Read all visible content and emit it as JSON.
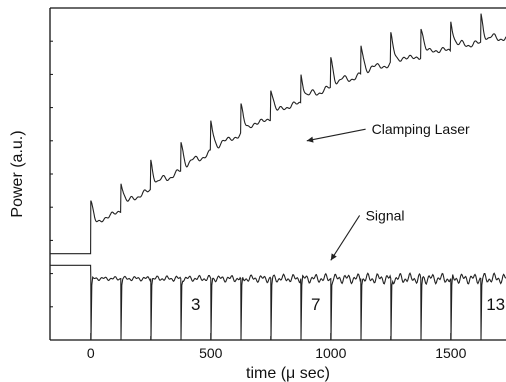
{
  "chart_data": {
    "type": "line",
    "title": "",
    "xlabel": "time (μ sec)",
    "ylabel": "Power (a.u.)",
    "xlim": [
      -170,
      1730
    ],
    "ylim": [
      0,
      100
    ],
    "xticks": [
      0,
      500,
      1000,
      1500
    ],
    "xtick_labels": [
      "0",
      "500",
      "1000",
      "1500"
    ],
    "y_tick_labels": false,
    "grid": false,
    "legend": "none",
    "colors": {
      "trace": "#222222",
      "axes": "#111111"
    },
    "series": [
      {
        "name": "Clamping Laser",
        "baseline_before_pulse": 26,
        "pump_start_x": 0,
        "envelope_x": [
          0,
          200,
          400,
          600,
          800,
          1000,
          1200,
          1400,
          1600,
          1730
        ],
        "envelope_y": [
          35,
          45,
          54,
          63,
          71,
          78,
          84,
          88,
          91,
          93
        ],
        "relaxation_period": 125,
        "spike_height": 9,
        "spike_decay": 26
      },
      {
        "name": "Signal",
        "baseline_before_pulse": 22.5,
        "baseline_after_pulse": 18.5,
        "pulse_period": 125,
        "pulse_depth": 18.5,
        "pulse_count": 14
      }
    ],
    "annotations": [
      {
        "text": "Clamping Laser",
        "x": 1170,
        "y": 62,
        "arrow_to_x": 900,
        "arrow_to_y": 60
      },
      {
        "text": "Signal",
        "x": 1145,
        "y": 36,
        "arrow_to_x": 1000,
        "arrow_to_y": 24
      }
    ],
    "pulse_labels": [
      {
        "text": "3",
        "x": 437,
        "y": 9
      },
      {
        "text": "7",
        "x": 937,
        "y": 9
      },
      {
        "text": "13",
        "x": 1687,
        "y": 9
      }
    ]
  }
}
